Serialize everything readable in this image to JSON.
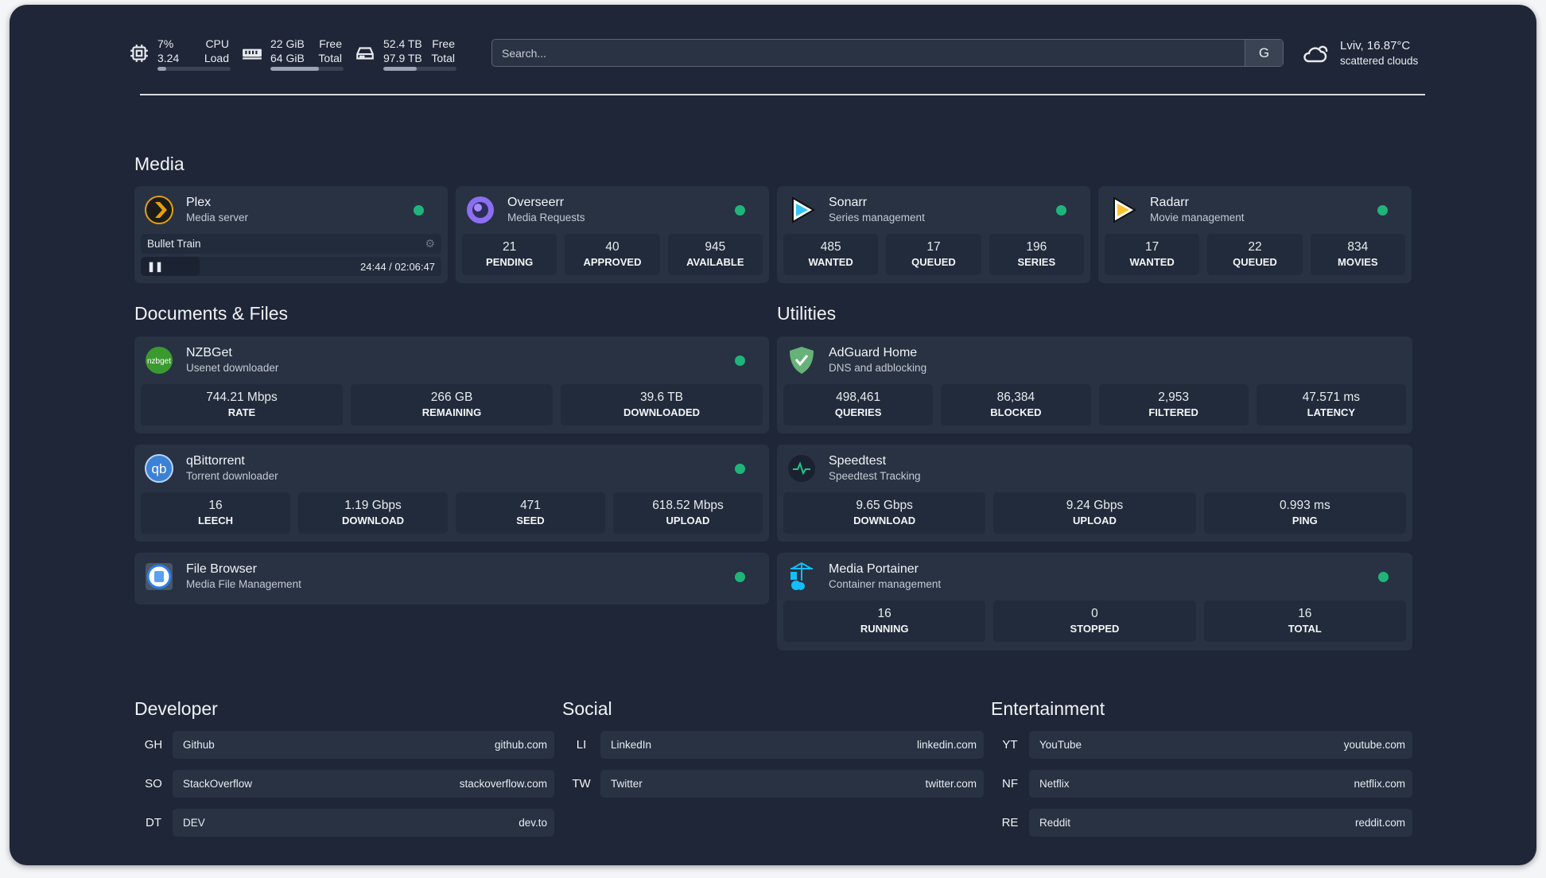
{
  "header": {
    "cpu": {
      "icon": "cpu-icon",
      "usage": "7%",
      "load": "3.24",
      "label1": "CPU",
      "label2": "Load",
      "percent": 7
    },
    "memory": {
      "icon": "memory-icon",
      "free": "22 GiB",
      "total": "64 GiB",
      "label1": "Free",
      "label2": "Total",
      "percent": 66
    },
    "disk": {
      "icon": "disk-icon",
      "free": "52.4 TB",
      "total": "97.9 TB",
      "label1": "Free",
      "label2": "Total",
      "percent": 46
    },
    "search": {
      "placeholder": "Search...",
      "engine_label": "G"
    },
    "weather": {
      "icon": "cloud-icon",
      "location_temp": "Lviv, 16.87°C",
      "condition": "scattered clouds"
    }
  },
  "colors": {
    "background": "#1f2637",
    "card": "#283243",
    "stat_box": "#222b3b",
    "status_ok": "#1fb57a"
  },
  "sections": {
    "media": {
      "title": "Media",
      "services": [
        {
          "name": "Plex",
          "desc": "Media server",
          "icon": "plex-icon",
          "status": "online",
          "now_playing": {
            "title": "Bullet Train",
            "time": "24:44 / 02:06:47",
            "progress": 19.5,
            "control": "pause"
          }
        },
        {
          "name": "Overseerr",
          "desc": "Media Requests",
          "icon": "overseerr-icon",
          "status": "online",
          "stats": [
            {
              "v": "21",
              "l": "PENDING"
            },
            {
              "v": "40",
              "l": "APPROVED"
            },
            {
              "v": "945",
              "l": "AVAILABLE"
            }
          ]
        },
        {
          "name": "Sonarr",
          "desc": "Series management",
          "icon": "sonarr-icon",
          "status": "online",
          "stats": [
            {
              "v": "485",
              "l": "WANTED"
            },
            {
              "v": "17",
              "l": "QUEUED"
            },
            {
              "v": "196",
              "l": "SERIES"
            }
          ]
        },
        {
          "name": "Radarr",
          "desc": "Movie management",
          "icon": "radarr-icon",
          "status": "online",
          "stats": [
            {
              "v": "17",
              "l": "WANTED"
            },
            {
              "v": "22",
              "l": "QUEUED"
            },
            {
              "v": "834",
              "l": "MOVIES"
            }
          ]
        }
      ]
    },
    "docs": {
      "title": "Documents & Files",
      "services": [
        {
          "name": "NZBGet",
          "desc": "Usenet downloader",
          "icon": "nzbget-icon",
          "status": "online",
          "stats": [
            {
              "v": "744.21 Mbps",
              "l": "RATE"
            },
            {
              "v": "266 GB",
              "l": "REMAINING"
            },
            {
              "v": "39.6 TB",
              "l": "DOWNLOADED"
            }
          ]
        },
        {
          "name": "qBittorrent",
          "desc": "Torrent downloader",
          "icon": "qbittorrent-icon",
          "status": "online",
          "stats": [
            {
              "v": "16",
              "l": "LEECH"
            },
            {
              "v": "1.19 Gbps",
              "l": "DOWNLOAD"
            },
            {
              "v": "471",
              "l": "SEED"
            },
            {
              "v": "618.52 Mbps",
              "l": "UPLOAD"
            }
          ]
        },
        {
          "name": "File Browser",
          "desc": "Media File Management",
          "icon": "filebrowser-icon",
          "status": "online"
        }
      ]
    },
    "utilities": {
      "title": "Utilities",
      "services": [
        {
          "name": "AdGuard Home",
          "desc": "DNS and adblocking",
          "icon": "adguard-icon",
          "stats": [
            {
              "v": "498,461",
              "l": "QUERIES"
            },
            {
              "v": "86,384",
              "l": "BLOCKED"
            },
            {
              "v": "2,953",
              "l": "FILTERED"
            },
            {
              "v": "47.571 ms",
              "l": "LATENCY"
            }
          ]
        },
        {
          "name": "Speedtest",
          "desc": "Speedtest Tracking",
          "icon": "speedtest-icon",
          "stats": [
            {
              "v": "9.65 Gbps",
              "l": "DOWNLOAD"
            },
            {
              "v": "9.24 Gbps",
              "l": "UPLOAD"
            },
            {
              "v": "0.993 ms",
              "l": "PING"
            }
          ]
        },
        {
          "name": "Media Portainer",
          "desc": "Container management",
          "icon": "portainer-icon",
          "status": "online",
          "stats": [
            {
              "v": "16",
              "l": "RUNNING"
            },
            {
              "v": "0",
              "l": "STOPPED"
            },
            {
              "v": "16",
              "l": "TOTAL"
            }
          ]
        }
      ]
    }
  },
  "bookmarks": [
    {
      "title": "Developer",
      "items": [
        {
          "abbr": "GH",
          "name": "Github",
          "url": "github.com"
        },
        {
          "abbr": "SO",
          "name": "StackOverflow",
          "url": "stackoverflow.com"
        },
        {
          "abbr": "DT",
          "name": "DEV",
          "url": "dev.to"
        }
      ]
    },
    {
      "title": "Social",
      "items": [
        {
          "abbr": "LI",
          "name": "LinkedIn",
          "url": "linkedin.com"
        },
        {
          "abbr": "TW",
          "name": "Twitter",
          "url": "twitter.com"
        }
      ]
    },
    {
      "title": "Entertainment",
      "items": [
        {
          "abbr": "YT",
          "name": "YouTube",
          "url": "youtube.com"
        },
        {
          "abbr": "NF",
          "name": "Netflix",
          "url": "netflix.com"
        },
        {
          "abbr": "RE",
          "name": "Reddit",
          "url": "reddit.com"
        }
      ]
    }
  ]
}
